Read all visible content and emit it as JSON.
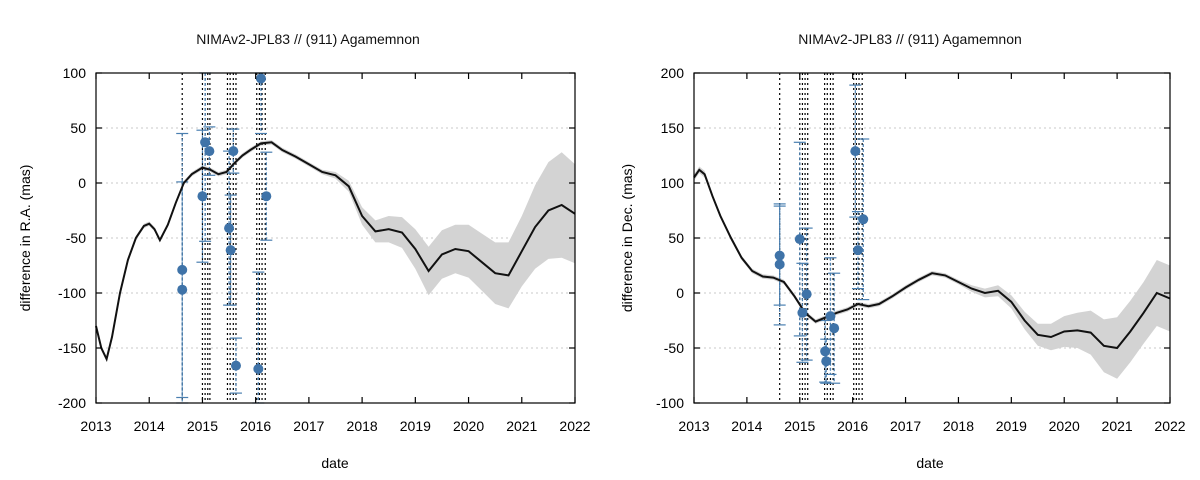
{
  "chart_data": [
    {
      "type": "line",
      "title": "NIMAv2-JPL83 // (911) Agamemnon",
      "xlabel": "date",
      "ylabel": "difference in R.A. (mas)",
      "xlim": [
        2013,
        2022
      ],
      "ylim": [
        -200,
        100
      ],
      "xticks": [
        2013,
        2014,
        2015,
        2016,
        2017,
        2018,
        2019,
        2020,
        2021,
        2022
      ],
      "yticks": [
        -200,
        -150,
        -100,
        -50,
        0,
        50,
        100
      ],
      "grid": true,
      "series": [
        {
          "name": "difference curve",
          "x": [
            2013.0,
            2013.1,
            2013.2,
            2013.3,
            2013.45,
            2013.6,
            2013.75,
            2013.9,
            2014.0,
            2014.1,
            2014.2,
            2014.35,
            2014.5,
            2014.65,
            2014.8,
            2015.0,
            2015.15,
            2015.3,
            2015.45,
            2015.6,
            2015.75,
            2015.9,
            2016.1,
            2016.3,
            2016.5,
            2016.75,
            2017.0,
            2017.25,
            2017.5,
            2017.75,
            2018.0,
            2018.25,
            2018.5,
            2018.75,
            2019.0,
            2019.25,
            2019.5,
            2019.75,
            2020.0,
            2020.25,
            2020.5,
            2020.75,
            2021.0,
            2021.25,
            2021.5,
            2021.75,
            2022.0
          ],
          "y": [
            -130,
            -150,
            -160,
            -140,
            -100,
            -70,
            -50,
            -39,
            -37,
            -42,
            -52,
            -38,
            -18,
            0,
            8,
            14,
            12,
            8,
            10,
            18,
            25,
            30,
            36,
            37,
            30,
            24,
            17,
            10,
            7,
            -3,
            -30,
            -44,
            -42,
            -45,
            -60,
            -80,
            -65,
            -60,
            -62,
            -72,
            -82,
            -84,
            -62,
            -40,
            -25,
            -20,
            -28
          ],
          "band": [
            2,
            2,
            2,
            2,
            2,
            2,
            2,
            2,
            2,
            2,
            2,
            2,
            2,
            2,
            2,
            2,
            2,
            2,
            2,
            2,
            2,
            2,
            2,
            2,
            2,
            2,
            2,
            2,
            3,
            5,
            8,
            10,
            12,
            14,
            18,
            22,
            22,
            22,
            24,
            26,
            28,
            30,
            32,
            38,
            44,
            48,
            45
          ]
        }
      ],
      "observations": {
        "x": [
          2014.62,
          2014.62,
          2015.0,
          2015.05,
          2015.13,
          2015.5,
          2015.53,
          2015.58,
          2015.63,
          2016.05,
          2016.1,
          2016.2
        ],
        "y": [
          -79,
          -97,
          -12,
          37,
          29,
          -41,
          -61,
          29,
          -166,
          -169,
          95,
          -12
        ],
        "err": [
          124,
          98,
          60,
          90,
          22,
          70,
          50,
          20,
          25,
          88,
          50,
          40
        ]
      },
      "vlines": [
        2014.62,
        2015.0,
        2015.05,
        2015.1,
        2015.14,
        2015.47,
        2015.52,
        2015.58,
        2015.63,
        2016.02,
        2016.07,
        2016.12,
        2016.18
      ]
    },
    {
      "type": "line",
      "title": "NIMAv2-JPL83 // (911) Agamemnon",
      "xlabel": "date",
      "ylabel": "difference in Dec. (mas)",
      "xlim": [
        2013,
        2022
      ],
      "ylim": [
        -100,
        200
      ],
      "xticks": [
        2013,
        2014,
        2015,
        2016,
        2017,
        2018,
        2019,
        2020,
        2021,
        2022
      ],
      "yticks": [
        -100,
        -50,
        0,
        50,
        100,
        150,
        200
      ],
      "grid": true,
      "series": [
        {
          "name": "difference curve",
          "x": [
            2013.0,
            2013.1,
            2013.2,
            2013.35,
            2013.5,
            2013.7,
            2013.9,
            2014.1,
            2014.3,
            2014.5,
            2014.7,
            2014.9,
            2015.1,
            2015.3,
            2015.5,
            2015.7,
            2015.9,
            2016.1,
            2016.3,
            2016.5,
            2016.75,
            2017.0,
            2017.25,
            2017.5,
            2017.75,
            2018.0,
            2018.25,
            2018.5,
            2018.75,
            2019.0,
            2019.25,
            2019.5,
            2019.75,
            2020.0,
            2020.25,
            2020.5,
            2020.75,
            2021.0,
            2021.25,
            2021.5,
            2021.75,
            2022.0
          ],
          "y": [
            105,
            112,
            108,
            88,
            70,
            50,
            32,
            20,
            15,
            14,
            10,
            -3,
            -18,
            -26,
            -22,
            -18,
            -15,
            -10,
            -12,
            -10,
            -3,
            5,
            12,
            18,
            16,
            10,
            4,
            0,
            2,
            -8,
            -25,
            -38,
            -40,
            -35,
            -34,
            -36,
            -48,
            -50,
            -35,
            -18,
            0,
            -5
          ],
          "band": [
            3,
            3,
            3,
            2,
            2,
            2,
            2,
            2,
            2,
            2,
            2,
            2,
            2,
            2,
            2,
            2,
            2,
            2,
            2,
            2,
            2,
            2,
            2,
            2,
            2,
            2,
            3,
            4,
            5,
            6,
            8,
            10,
            12,
            14,
            16,
            20,
            24,
            28,
            28,
            28,
            30,
            30
          ]
        }
      ],
      "observations": {
        "x": [
          2014.62,
          2014.62,
          2015.0,
          2015.05,
          2015.13,
          2015.48,
          2015.5,
          2015.58,
          2015.65,
          2016.05,
          2016.1,
          2016.2
        ],
        "y": [
          34,
          26,
          49,
          -18,
          -1,
          -53,
          -62,
          -21,
          -32,
          129,
          39,
          67
        ],
        "err": [
          45,
          55,
          88,
          45,
          60,
          28,
          20,
          53,
          50,
          60,
          35,
          73
        ]
      },
      "vlines": [
        2014.62,
        2015.0,
        2015.05,
        2015.1,
        2015.15,
        2015.47,
        2015.52,
        2015.58,
        2015.63,
        2016.02,
        2016.07,
        2016.12,
        2016.18
      ]
    }
  ]
}
